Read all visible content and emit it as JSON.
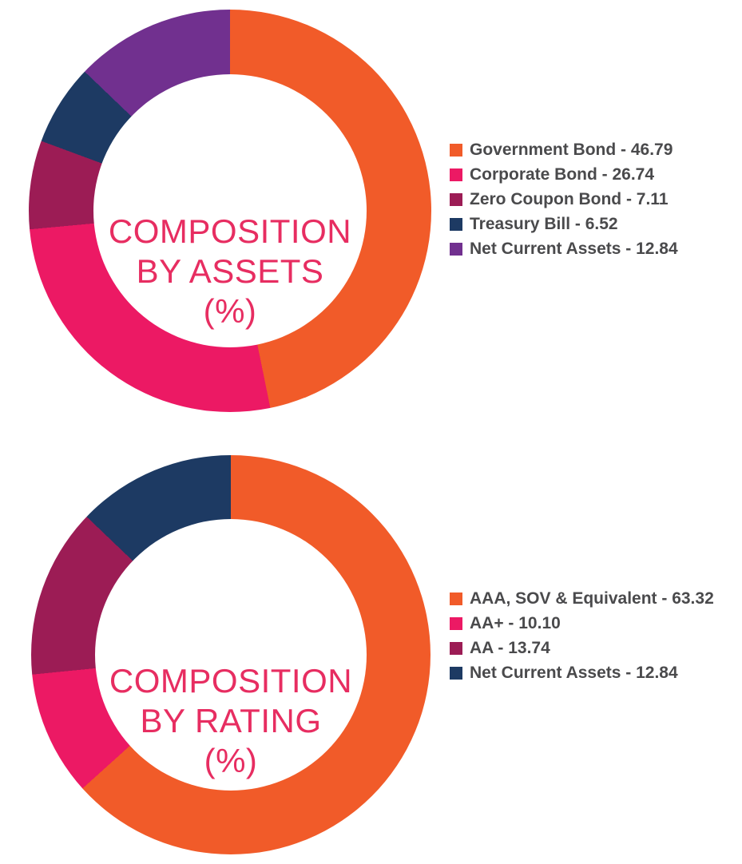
{
  "theme": {
    "background_color": "#FFFFFF",
    "center_title_color": "#E72D61",
    "legend_text_color": "#4A4A4C"
  },
  "chart_data": [
    {
      "type": "pie",
      "subtype": "donut",
      "title": "COMPOSITION BY ASSETS (%)",
      "center_title_lines": [
        "COMPOSITION",
        "BY ASSETS",
        "(%)"
      ],
      "units": "percent",
      "rotation": "starts at 12 o'clock, clockwise",
      "legend_position": "right",
      "slices": [
        {
          "label": "Government Bond",
          "value": 46.79,
          "color": "#F15B29",
          "legend_text": "Government Bond - 46.79"
        },
        {
          "label": "Corporate Bond",
          "value": 26.74,
          "color": "#EC1964",
          "legend_text": "Corporate Bond - 26.74"
        },
        {
          "label": "Zero Coupon Bond",
          "value": 7.11,
          "color": "#9C1C55",
          "legend_text": "Zero Coupon Bond - 7.11"
        },
        {
          "label": "Treasury Bill",
          "value": 6.52,
          "color": "#1D3A63",
          "legend_text": "Treasury Bill - 6.52"
        },
        {
          "label": "Net Current Assets",
          "value": 12.84,
          "color": "#71308F",
          "legend_text": "Net Current Assets - 12.84"
        }
      ]
    },
    {
      "type": "pie",
      "subtype": "donut",
      "title": "COMPOSITION BY RATING (%)",
      "center_title_lines": [
        "COMPOSITION",
        "BY RATING",
        "(%)"
      ],
      "units": "percent",
      "rotation": "starts at 12 o'clock, clockwise",
      "legend_position": "right",
      "slices": [
        {
          "label": "AAA, SOV & Equivalent",
          "value": 63.32,
          "color": "#F15B29",
          "legend_text": "AAA, SOV & Equivalent - 63.32"
        },
        {
          "label": "AA+",
          "value": 10.1,
          "color": "#EC1964",
          "legend_text": "AA+ - 10.10"
        },
        {
          "label": "AA",
          "value": 13.74,
          "color": "#9C1C55",
          "legend_text": "AA - 13.74"
        },
        {
          "label": "Net Current Assets",
          "value": 12.84,
          "color": "#1D3A63",
          "legend_text": "Net Current Assets - 12.84"
        }
      ]
    }
  ]
}
